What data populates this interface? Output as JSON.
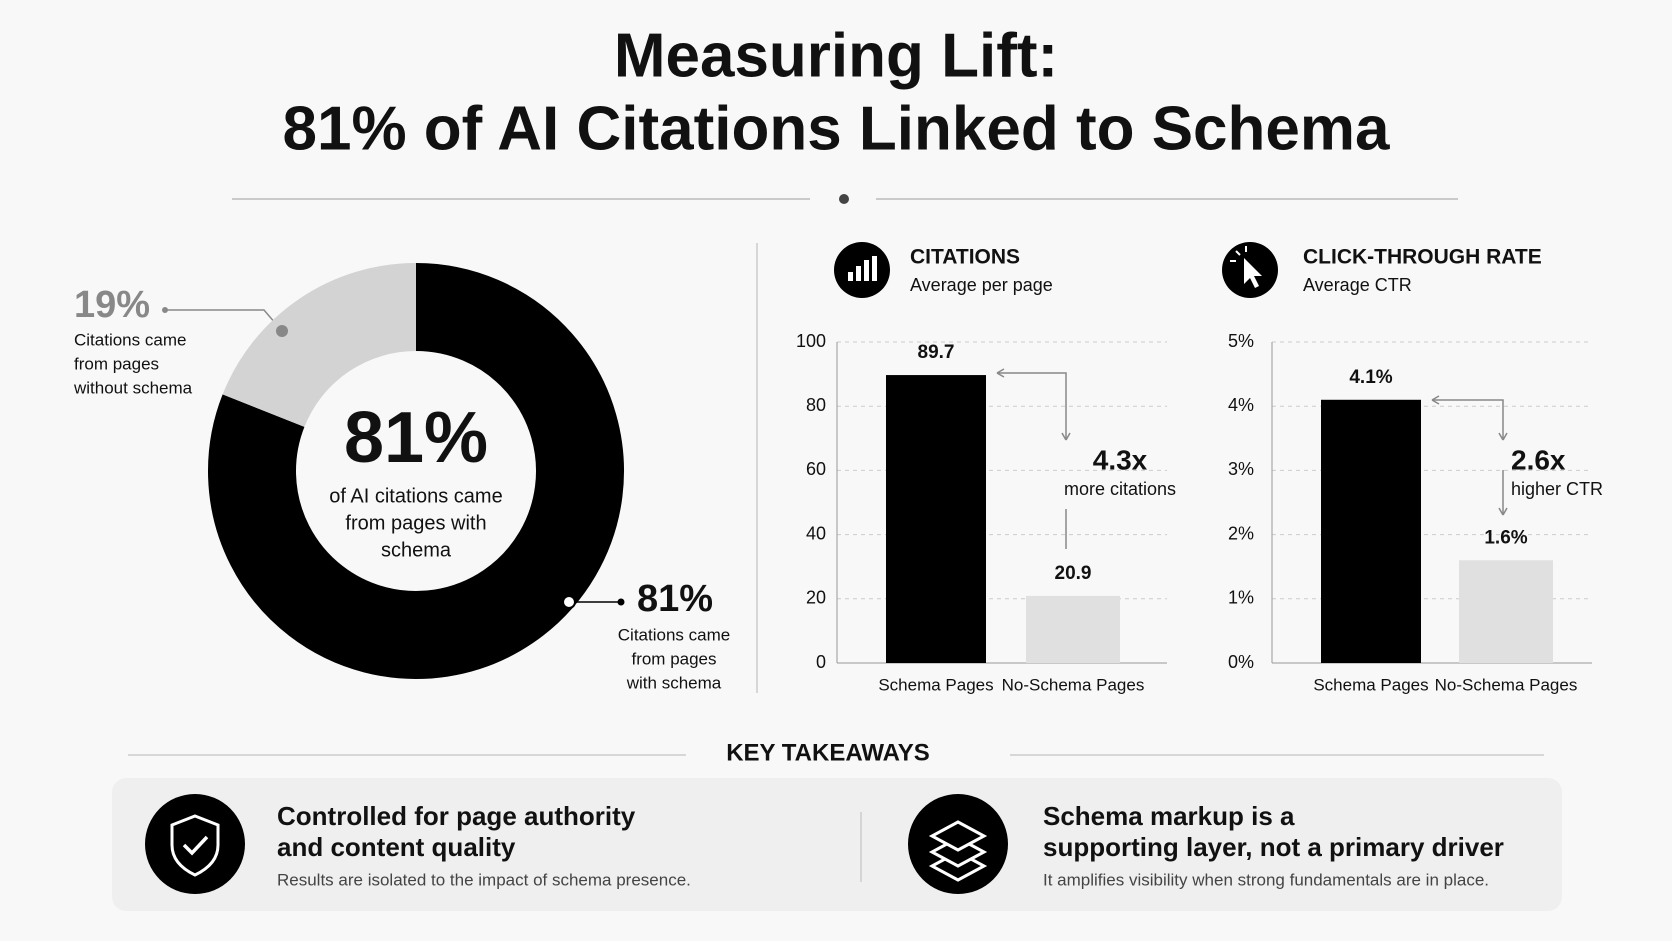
{
  "title_lines": [
    "Measuring Lift:",
    "81% of AI Citations Linked to Schema"
  ],
  "chart_data": [
    {
      "type": "donut",
      "values": [
        81,
        19
      ],
      "value_labels": [
        "81%",
        "19%"
      ],
      "labels": [
        [
          "Citations came",
          "from pages",
          "with schema"
        ],
        [
          "Citations came",
          "from pages",
          "without schema"
        ]
      ],
      "colors": [
        "#000000",
        "#d3d3d3"
      ],
      "center_text": [
        "of AI citations came",
        "from pages with",
        "schema"
      ]
    },
    {
      "type": "bar",
      "title": "CITATIONS",
      "subtitle": "Average per page",
      "categories": [
        "Schema Pages",
        "No-Schema Pages"
      ],
      "values": [
        89.7,
        20.9
      ],
      "colors": [
        "#000000",
        "#e0e0e0"
      ],
      "ylim": [
        0,
        100
      ],
      "yticks": [
        0,
        20,
        40,
        60,
        80,
        100
      ],
      "grid": true,
      "annotation": "4.3x",
      "annotation_note": "more citations"
    },
    {
      "type": "bar",
      "title": "CLICK-THROUGH RATE",
      "subtitle": "Average CTR",
      "categories": [
        "Schema Pages",
        "No-Schema Pages"
      ],
      "values": [
        4.1,
        1.6
      ],
      "value_labels": [
        "4.1%",
        "1.6%"
      ],
      "colors": [
        "#000000",
        "#e0e0e0"
      ],
      "ylim": [
        0,
        5
      ],
      "yticks": [
        {
          "value": 0,
          "label": "0%"
        },
        {
          "value": 1,
          "label": "1%"
        },
        {
          "value": 2,
          "label": "2%"
        },
        {
          "value": 3,
          "label": "3%"
        },
        {
          "value": 4,
          "label": "4%"
        },
        {
          "value": 5,
          "label": "5%"
        }
      ],
      "grid": true,
      "annotation": "2.6x",
      "annotation_note": "higher CTR"
    }
  ],
  "key_takeaways": {
    "heading": "KEY TAKEAWAYS",
    "items": [
      {
        "title": [
          "Controlled for page authority",
          "and content quality"
        ],
        "text": "Results are isolated to the impact of schema presence."
      },
      {
        "title": [
          "Schema markup is a",
          "supporting layer, not a primary driver"
        ],
        "text": "It amplifies visibility when strong fundamentals are in place."
      }
    ]
  }
}
